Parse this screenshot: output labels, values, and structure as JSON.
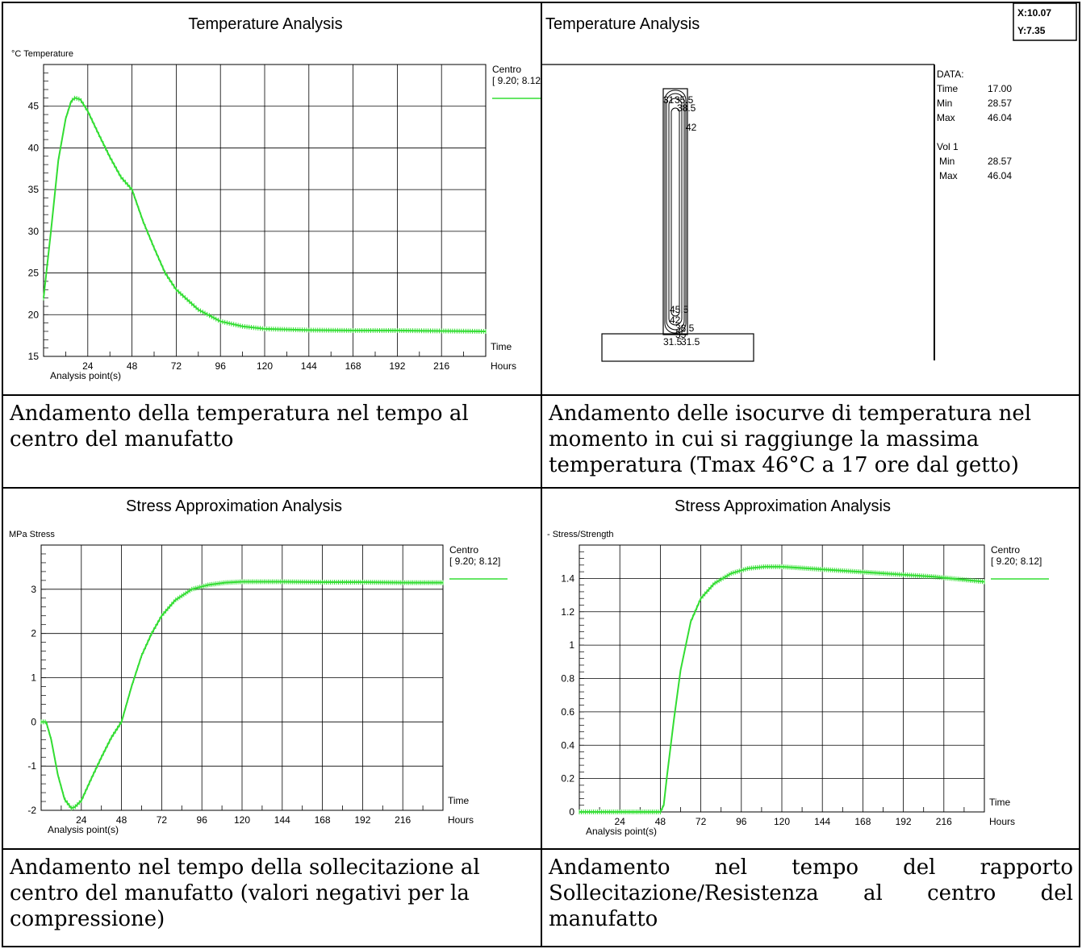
{
  "colors": {
    "series": "#33dd33",
    "grid": "#000000"
  },
  "charts": [
    {
      "title": "Temperature Analysis",
      "unit_label": "°C  Temperature",
      "legend_name": "Centro",
      "legend_coord": "[ 9.20; 8.12]",
      "x_name": "Time",
      "x_unit": "Hours",
      "x_caption": "Analysis point(s)"
    },
    {
      "title": "Temperature Analysis",
      "cursor_x": "X:10.07",
      "cursor_y": "Y:7.35",
      "data_header": "DATA:",
      "data_rows": [
        {
          "label": "Time",
          "value": "17.00"
        },
        {
          "label": "Min",
          "value": "28.57"
        },
        {
          "label": "Max",
          "value": "46.04"
        }
      ],
      "vol_header": "Vol 1",
      "vol_rows": [
        {
          "label": "Min",
          "value": "28.57"
        },
        {
          "label": "Max",
          "value": "46.04"
        }
      ],
      "contour_labels": [
        "31",
        "35.5",
        "38.5",
        "42",
        "45.5",
        "42",
        "38.5",
        "35",
        "31.5",
        "31.5"
      ]
    },
    {
      "title": "Stress Approximation Analysis",
      "unit_label": "MPa  Stress",
      "legend_name": "Centro",
      "legend_coord": "[ 9.20; 8.12]",
      "x_name": "Time",
      "x_unit": "Hours",
      "x_caption": "Analysis point(s)"
    },
    {
      "title": "Stress Approximation Analysis",
      "unit_label": "-  Stress/Strength",
      "legend_name": "Centro",
      "legend_coord": "[ 9.20; 8.12]",
      "x_name": "Time",
      "x_unit": "Hours",
      "x_caption": "Analysis point(s)"
    }
  ],
  "captions": [
    "Andamento della temperatura nel tempo al centro del manufatto",
    "Andamento delle isocurve di temperatura nel momento in cui si raggiunge la massima temperatura (Tmax 46°C a 17 ore dal getto)",
    "Andamento nel tempo della sollecitazione al centro del manufatto (valori negativi per la compressione)",
    "Andamento nel tempo del rapporto Sollecitazione/Resistenza al centro del manufatto"
  ],
  "chart_data": [
    {
      "type": "line",
      "title": "Temperature Analysis",
      "xlabel": "Time",
      "ylabel": "°C  Temperature",
      "xlim": [
        0,
        240
      ],
      "ylim": [
        15,
        50
      ],
      "x_ticks": [
        24,
        48,
        72,
        96,
        120,
        144,
        168,
        192,
        216
      ],
      "y_ticks": [
        15,
        20,
        25,
        30,
        35,
        40,
        45
      ],
      "grid": true,
      "legend": "top-right",
      "series": [
        {
          "name": "Centro",
          "x": [
            0,
            4,
            8,
            12,
            15,
            17,
            20,
            24,
            30,
            36,
            42,
            48,
            54,
            60,
            66,
            72,
            84,
            96,
            108,
            120,
            144,
            168,
            192,
            216,
            240
          ],
          "y": [
            22,
            30,
            38.5,
            43.5,
            45.6,
            46.0,
            45.8,
            44.4,
            41.6,
            38.9,
            36.5,
            35,
            31.2,
            28,
            25,
            23,
            20.6,
            19.2,
            18.6,
            18.3,
            18.15,
            18.1,
            18.1,
            18.05,
            18.0
          ]
        }
      ]
    },
    {
      "type": "heatmap",
      "title": "Temperature Analysis",
      "note": "isotherm contours at Time 17.00",
      "min": 28.57,
      "max": 46.04
    },
    {
      "type": "line",
      "title": "Stress Approximation Analysis",
      "xlabel": "Time",
      "ylabel": "MPa  Stress",
      "xlim": [
        0,
        240
      ],
      "ylim": [
        -2,
        4
      ],
      "x_ticks": [
        24,
        48,
        72,
        96,
        120,
        144,
        168,
        192,
        216
      ],
      "y_ticks": [
        -2,
        -1,
        0,
        1,
        2,
        3
      ],
      "grid": true,
      "legend": "top-right",
      "series": [
        {
          "name": "Centro",
          "x": [
            0,
            3,
            6,
            10,
            14,
            18,
            20,
            24,
            30,
            36,
            42,
            48,
            54,
            60,
            66,
            72,
            80,
            90,
            100,
            110,
            120,
            144,
            168,
            192,
            216,
            240
          ],
          "y": [
            0,
            0,
            -0.4,
            -1.2,
            -1.75,
            -1.95,
            -1.93,
            -1.78,
            -1.28,
            -0.8,
            -0.35,
            0,
            0.8,
            1.5,
            2.0,
            2.4,
            2.75,
            3.0,
            3.1,
            3.15,
            3.17,
            3.17,
            3.16,
            3.16,
            3.15,
            3.15
          ]
        }
      ]
    },
    {
      "type": "line",
      "title": "Stress Approximation Analysis",
      "xlabel": "Time",
      "ylabel": "-  Stress/Strength",
      "xlim": [
        0,
        240
      ],
      "ylim": [
        0,
        1.6
      ],
      "x_ticks": [
        24,
        48,
        72,
        96,
        120,
        144,
        168,
        192,
        216
      ],
      "y_ticks": [
        0,
        0.2,
        0.4,
        0.6,
        0.8,
        1,
        1.2,
        1.4
      ],
      "grid": true,
      "legend": "top-right",
      "series": [
        {
          "name": "Centro",
          "x": [
            0,
            20,
            40,
            48,
            50,
            52,
            56,
            60,
            66,
            72,
            80,
            90,
            100,
            110,
            120,
            150,
            180,
            210,
            230,
            240
          ],
          "y": [
            0,
            0,
            0,
            0,
            0.04,
            0.22,
            0.55,
            0.85,
            1.14,
            1.28,
            1.37,
            1.43,
            1.46,
            1.47,
            1.47,
            1.45,
            1.43,
            1.41,
            1.39,
            1.38
          ]
        }
      ]
    }
  ]
}
